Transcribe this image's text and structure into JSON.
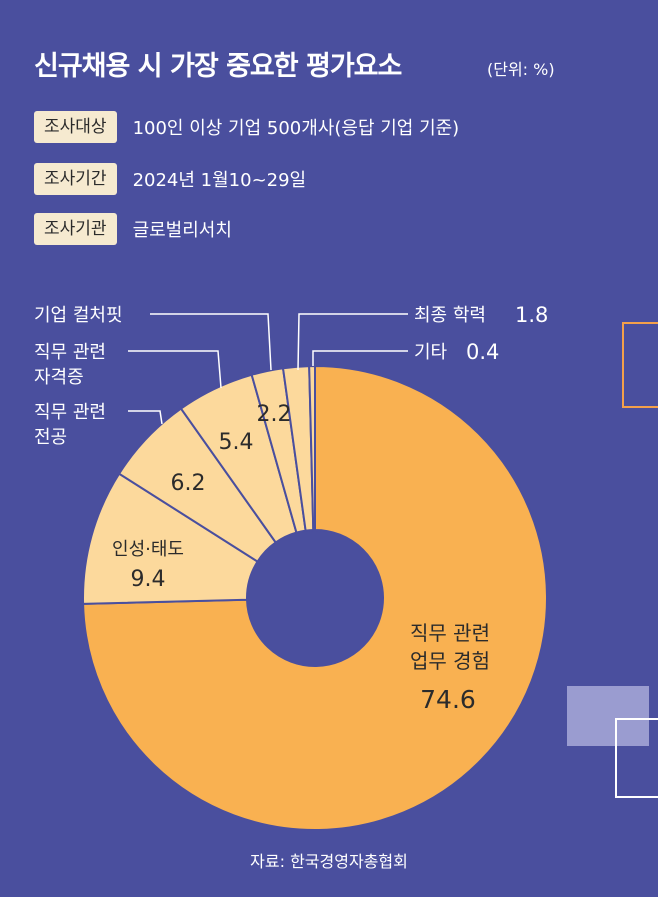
{
  "header": {
    "title": "신규채용 시 가장 중요한 평가요소",
    "unit": "(단위: %)"
  },
  "survey": [
    {
      "label": "조사대상",
      "value": "100인 이상 기업 500개사(응답 기업 기준)"
    },
    {
      "label": "조사기간",
      "value": "2024년 1월10~29일"
    },
    {
      "label": "조사기관",
      "value": "글로벌리서치"
    }
  ],
  "source": "자료: 한국경영자총협회",
  "colors": {
    "background": "#4a4f9e",
    "major": "#f9b151",
    "minor": "#fcd99c",
    "outline": "#4a4f9e",
    "badge": "#f6ead0"
  },
  "chart_data": {
    "type": "pie",
    "donut": true,
    "unit": "%",
    "slices": [
      {
        "label": "직무 관련 업무 경험",
        "value": 74.6
      },
      {
        "label": "인성·태도",
        "value": 9.4
      },
      {
        "label": "직무 관련 전공",
        "value": 6.2
      },
      {
        "label": "직무 관련 자격증",
        "value": 5.4
      },
      {
        "label": "기업 컬처핏",
        "value": 2.2
      },
      {
        "label": "최종 학력",
        "value": 1.8
      },
      {
        "label": "기타",
        "value": 0.4
      }
    ],
    "label_text": {
      "major_line1": "직무 관련",
      "major_line2": "업무 경험",
      "major_value": "74.6",
      "insung": "인성·태도",
      "insung_value": "9.4",
      "jeongong_line1": "직무 관련",
      "jeongong_line2": "전공",
      "jeongong_value": "6.2",
      "jagyeok_line1": "직무 관련",
      "jagyeok_line2": "자격증",
      "jagyeok_value": "5.4",
      "culture": "기업 컬처핏",
      "culture_value": "2.2",
      "haklyeok": "최종 학력",
      "haklyeok_value": "1.8",
      "gita": "기타",
      "gita_value": "0.4"
    }
  }
}
